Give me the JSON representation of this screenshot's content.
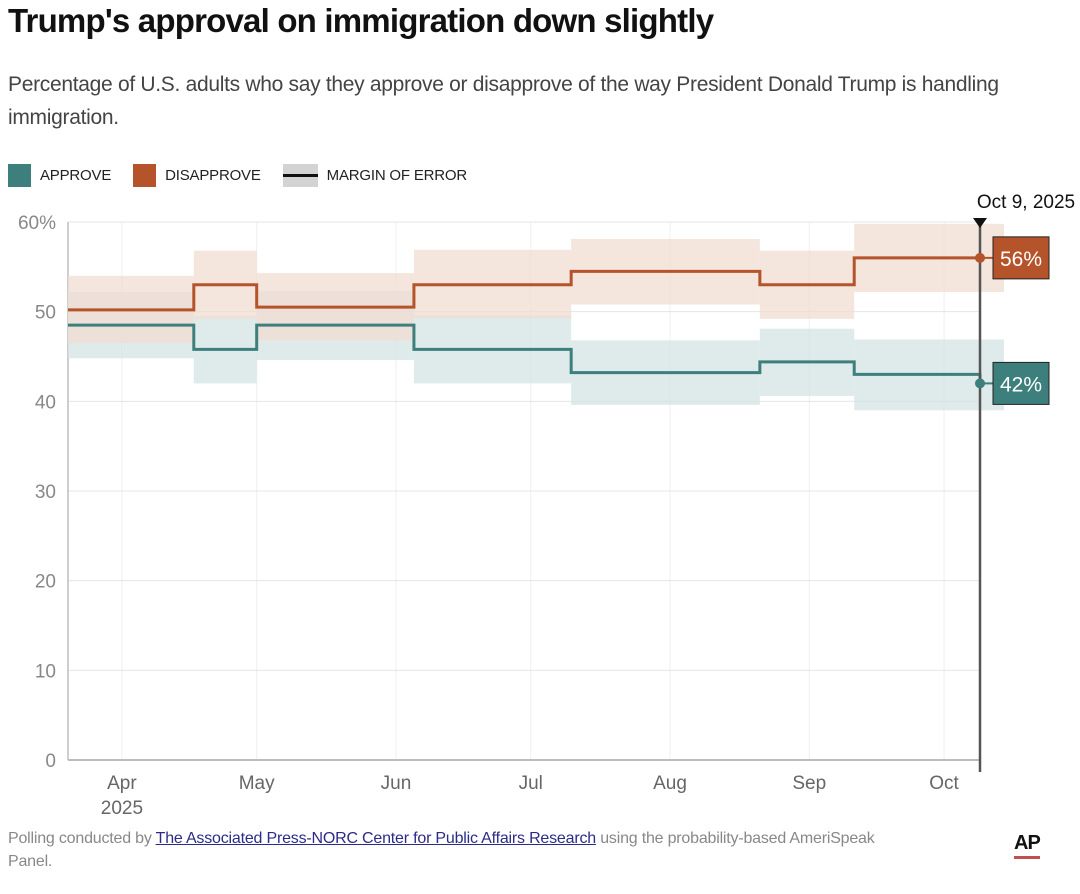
{
  "header": {
    "title": "Trump's approval on immigration down slightly",
    "subtitle": "Percentage of U.S. adults who say they approve or disapprove of the way President Donald Trump is handling immigration."
  },
  "legend": [
    {
      "label": "APPROVE",
      "color": "#3d7f7d",
      "kind": "swatch"
    },
    {
      "label": "DISAPPROVE",
      "color": "#b5542a",
      "kind": "swatch"
    },
    {
      "label": "MARGIN OF ERROR",
      "color": "#d3d3d3",
      "kind": "moe"
    }
  ],
  "colors": {
    "approve": "#3d7f7d",
    "approve_band": "#d4e4e3",
    "disapprove": "#b5542a",
    "disapprove_band": "#f0dcd2",
    "grid": "#e4e4e4",
    "axis": "#bdbdbd",
    "tick_text": "#888888",
    "marker_line": "#555555"
  },
  "chart_data": {
    "type": "line",
    "step": true,
    "title": "Trump's approval on immigration down slightly",
    "xlabel": "",
    "ylabel": "",
    "ylim": [
      0,
      60
    ],
    "yticks": [
      0,
      10,
      20,
      30,
      40,
      50,
      60
    ],
    "ytick_labels": [
      "0",
      "10",
      "20",
      "30",
      "40",
      "50",
      "60%"
    ],
    "xlim": [
      "2025-03-20",
      "2025-10-09"
    ],
    "xticks": [
      "2025-04-01",
      "2025-05-01",
      "2025-06-01",
      "2025-07-01",
      "2025-08-01",
      "2025-09-01",
      "2025-10-01"
    ],
    "xtick_labels": [
      "Apr",
      "May",
      "Jun",
      "Jul",
      "Aug",
      "Sep",
      "Oct"
    ],
    "xtick_sublabels": [
      "2025",
      "",
      "",
      "",
      "",
      "",
      ""
    ],
    "grid": true,
    "legend_position": "top-left",
    "step_dates": [
      "2025-03-20",
      "2025-04-17",
      "2025-05-01",
      "2025-06-05",
      "2025-07-10",
      "2025-08-21",
      "2025-09-11",
      "2025-10-09"
    ],
    "series": [
      {
        "name": "Approve",
        "values": [
          48.5,
          45.8,
          48.5,
          45.8,
          43.2,
          44.4,
          43.0,
          42.0
        ],
        "moe_low": [
          44.8,
          42.0,
          44.6,
          42.0,
          39.6,
          40.6,
          39.0,
          38.0
        ],
        "moe_high": [
          52.2,
          49.5,
          52.3,
          49.6,
          46.8,
          48.1,
          46.9,
          45.8
        ]
      },
      {
        "name": "Disapprove",
        "values": [
          50.2,
          53.0,
          50.5,
          53.0,
          54.5,
          53.0,
          56.0,
          56.0
        ],
        "moe_low": [
          46.5,
          49.2,
          46.8,
          49.3,
          50.8,
          49.2,
          52.2,
          51.8
        ],
        "moe_high": [
          54.0,
          56.8,
          54.3,
          56.9,
          58.1,
          56.8,
          59.8,
          59.8
        ]
      }
    ],
    "annotations": [
      {
        "type": "vertical-marker",
        "date": "2025-10-09",
        "label": "Oct 9, 2025"
      },
      {
        "type": "end-label",
        "series": "Disapprove",
        "text": "56%"
      },
      {
        "type": "end-label",
        "series": "Approve",
        "text": "42%"
      }
    ]
  },
  "footer": {
    "prefix": "Polling conducted by ",
    "link_text": "The Associated Press-NORC Center for Public Affairs Research",
    "suffix": " using the probability-based AmeriSpeak Panel.",
    "logo": "AP"
  }
}
